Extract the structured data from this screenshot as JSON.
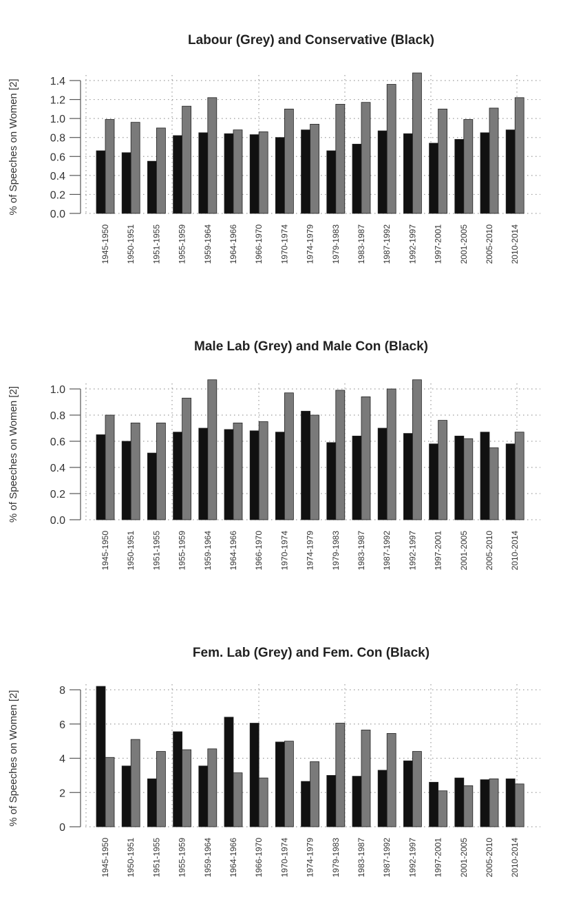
{
  "colors": {
    "conservative": "#111111",
    "labour": "#7a7a7a",
    "grid": "#9a9a9a",
    "axis": "#555555"
  },
  "chart_data": [
    {
      "type": "bar",
      "title": "Labour (Grey) and Conservative (Black)",
      "xlabel": "",
      "ylabel": "% of Speeches on Women [2]",
      "ylim": [
        0,
        1.4
      ],
      "yticks": [
        0.0,
        0.2,
        0.4,
        0.6,
        0.8,
        1.0,
        1.2,
        1.4
      ],
      "ytick_labels": [
        "0.0",
        "0.2",
        "0.4",
        "0.6",
        "0.8",
        "1.0",
        "1.2",
        "1.4"
      ],
      "grid": true,
      "categories": [
        "1945-1950",
        "1950-1951",
        "1951-1955",
        "1955-1959",
        "1959-1964",
        "1964-1966",
        "1966-1970",
        "1970-1974",
        "1974-1979",
        "1979-1983",
        "1983-1987",
        "1987-1992",
        "1992-1997",
        "1997-2001",
        "2001-2005",
        "2005-2010",
        "2010-2014"
      ],
      "series": [
        {
          "name": "Conservative (Black)",
          "color": "#111111",
          "values": [
            0.66,
            0.64,
            0.55,
            0.82,
            0.85,
            0.84,
            0.83,
            0.8,
            0.88,
            0.66,
            0.73,
            0.87,
            0.84,
            0.74,
            0.78,
            0.85,
            0.88
          ]
        },
        {
          "name": "Labour (Grey)",
          "color": "#7a7a7a",
          "values": [
            0.99,
            0.96,
            0.9,
            1.13,
            1.22,
            0.88,
            0.86,
            1.1,
            0.94,
            1.15,
            1.17,
            1.36,
            1.48,
            1.1,
            0.99,
            1.11,
            1.22
          ]
        }
      ]
    },
    {
      "type": "bar",
      "title": "Male Lab (Grey) and Male Con (Black)",
      "xlabel": "",
      "ylabel": "% of Speeches on Women [2]",
      "ylim": [
        0,
        1.0
      ],
      "yticks": [
        0.0,
        0.2,
        0.4,
        0.6,
        0.8,
        1.0
      ],
      "ytick_labels": [
        "0.0",
        "0.2",
        "0.4",
        "0.6",
        "0.8",
        "1.0"
      ],
      "grid": true,
      "categories": [
        "1945-1950",
        "1950-1951",
        "1951-1955",
        "1955-1959",
        "1959-1964",
        "1964-1966",
        "1966-1970",
        "1970-1974",
        "1974-1979",
        "1979-1983",
        "1983-1987",
        "1987-1992",
        "1992-1997",
        "1997-2001",
        "2001-2005",
        "2005-2010",
        "2010-2014"
      ],
      "series": [
        {
          "name": "Male Con (Black)",
          "color": "#111111",
          "values": [
            0.65,
            0.6,
            0.51,
            0.67,
            0.7,
            0.69,
            0.68,
            0.67,
            0.83,
            0.59,
            0.64,
            0.7,
            0.66,
            0.58,
            0.64,
            0.67,
            0.58
          ]
        },
        {
          "name": "Male Lab (Grey)",
          "color": "#7a7a7a",
          "values": [
            0.8,
            0.74,
            0.74,
            0.93,
            1.07,
            0.74,
            0.75,
            0.97,
            0.8,
            0.99,
            0.94,
            1.0,
            1.07,
            0.76,
            0.62,
            0.55,
            0.67
          ]
        }
      ]
    },
    {
      "type": "bar",
      "title": "Fem. Lab (Grey) and Fem. Con (Black)",
      "xlabel": "",
      "ylabel": "% of Speeches on Women [2]",
      "ylim": [
        0,
        8
      ],
      "yticks": [
        0,
        2,
        4,
        6,
        8
      ],
      "ytick_labels": [
        "0",
        "2",
        "4",
        "6",
        "8"
      ],
      "grid": true,
      "categories": [
        "1945-1950",
        "1950-1951",
        "1951-1955",
        "1955-1959",
        "1959-1964",
        "1964-1966",
        "1966-1970",
        "1970-1974",
        "1974-1979",
        "1979-1983",
        "1983-1987",
        "1987-1992",
        "1992-1997",
        "1997-2001",
        "2001-2005",
        "2005-2010",
        "2010-2014"
      ],
      "series": [
        {
          "name": "Fem. Con (Black)",
          "color": "#111111",
          "values": [
            8.2,
            3.55,
            2.8,
            5.55,
            3.55,
            6.4,
            6.05,
            4.95,
            2.65,
            3.0,
            2.95,
            3.3,
            3.85,
            2.6,
            2.85,
            2.75,
            2.8
          ]
        },
        {
          "name": "Fem. Lab (Grey)",
          "color": "#7a7a7a",
          "values": [
            4.05,
            5.1,
            4.4,
            4.5,
            4.55,
            3.15,
            2.85,
            5.0,
            3.8,
            6.05,
            5.65,
            5.45,
            4.4,
            2.1,
            2.4,
            2.8,
            2.5
          ]
        }
      ]
    }
  ]
}
